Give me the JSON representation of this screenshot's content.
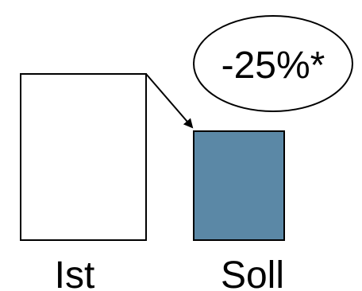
{
  "labels": {
    "ist": "Ist",
    "soll": "Soll",
    "reduction": "-25%*"
  },
  "colors": {
    "ist_fill": "#ffffff",
    "soll_fill": "#5b88a6",
    "stroke": "#000000"
  },
  "values": {
    "ist": 100,
    "soll": 75
  }
}
